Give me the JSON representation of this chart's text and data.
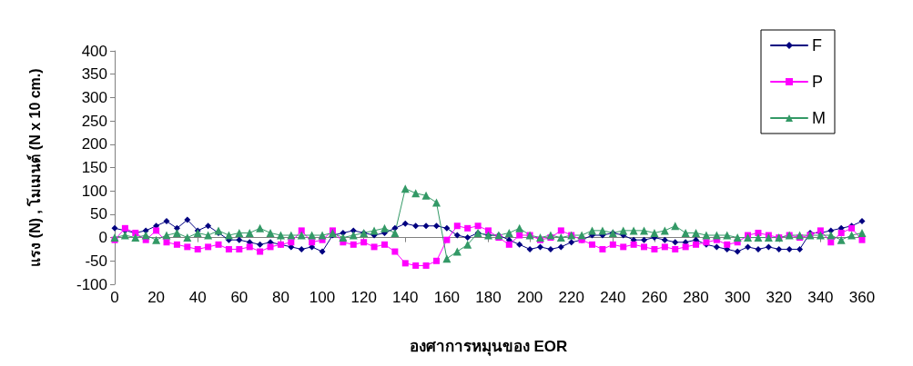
{
  "chart_data": {
    "type": "line",
    "xlabel": "องศาการหมุนของ EOR",
    "ylabel": "แรง (N) , โมเมนต์ (N x 10 cm.)",
    "x": [
      0,
      5,
      10,
      15,
      20,
      25,
      30,
      35,
      40,
      45,
      50,
      55,
      60,
      65,
      70,
      75,
      80,
      85,
      90,
      95,
      100,
      105,
      110,
      115,
      120,
      125,
      130,
      135,
      140,
      145,
      150,
      155,
      160,
      165,
      170,
      175,
      180,
      185,
      190,
      195,
      200,
      205,
      210,
      215,
      220,
      225,
      230,
      235,
      240,
      245,
      250,
      255,
      260,
      265,
      270,
      275,
      280,
      285,
      290,
      295,
      300,
      305,
      310,
      315,
      320,
      325,
      330,
      335,
      340,
      345,
      350,
      355,
      360
    ],
    "xlim": [
      0,
      360
    ],
    "xticks": [
      0,
      20,
      40,
      60,
      80,
      100,
      120,
      140,
      160,
      180,
      200,
      220,
      240,
      260,
      280,
      300,
      320,
      340,
      360
    ],
    "ylim": [
      -100,
      400
    ],
    "yticks": [
      -100,
      -50,
      0,
      50,
      100,
      150,
      200,
      250,
      300,
      350,
      400
    ],
    "legend": "top right",
    "line_style": "solid",
    "series": [
      {
        "name": "F",
        "color": "#000080",
        "marker": "diamond",
        "values": [
          20,
          15,
          10,
          15,
          25,
          35,
          20,
          38,
          15,
          25,
          10,
          -5,
          -5,
          -10,
          -15,
          -10,
          -15,
          -20,
          -25,
          -20,
          -30,
          5,
          10,
          15,
          10,
          5,
          10,
          20,
          30,
          25,
          25,
          25,
          20,
          5,
          0,
          10,
          5,
          5,
          -5,
          -15,
          -25,
          -20,
          -25,
          -20,
          -10,
          -5,
          5,
          5,
          10,
          5,
          -5,
          -5,
          0,
          -5,
          -10,
          -10,
          -5,
          -15,
          -20,
          -25,
          -30,
          -20,
          -25,
          -20,
          -25,
          -25,
          -25,
          10,
          10,
          15,
          20,
          25,
          35
        ]
      },
      {
        "name": "P",
        "color": "#ff00ff",
        "marker": "square",
        "values": [
          -5,
          20,
          10,
          -5,
          15,
          -10,
          -15,
          -20,
          -25,
          -20,
          -15,
          -25,
          -25,
          -20,
          -30,
          -20,
          -15,
          -10,
          15,
          -10,
          -5,
          15,
          -10,
          -15,
          -10,
          -20,
          -15,
          -30,
          -55,
          -60,
          -60,
          -50,
          -5,
          25,
          20,
          25,
          15,
          0,
          -15,
          5,
          5,
          -5,
          0,
          15,
          5,
          -5,
          -15,
          -25,
          -15,
          -20,
          -15,
          -20,
          -25,
          -20,
          -25,
          -20,
          -15,
          -10,
          -5,
          -15,
          -10,
          5,
          10,
          5,
          0,
          5,
          0,
          5,
          15,
          -10,
          10,
          20,
          -5
        ]
      },
      {
        "name": "M",
        "color": "#339966",
        "marker": "triangle",
        "values": [
          0,
          5,
          0,
          5,
          -5,
          5,
          10,
          0,
          10,
          5,
          15,
          5,
          10,
          10,
          20,
          10,
          5,
          5,
          5,
          5,
          5,
          10,
          0,
          5,
          10,
          15,
          20,
          10,
          105,
          95,
          90,
          75,
          -45,
          -30,
          -15,
          10,
          5,
          5,
          10,
          20,
          5,
          0,
          5,
          0,
          5,
          5,
          15,
          15,
          10,
          15,
          15,
          15,
          10,
          15,
          25,
          10,
          10,
          5,
          5,
          5,
          0,
          0,
          0,
          0,
          0,
          5,
          5,
          5,
          5,
          5,
          -5,
          5,
          10
        ]
      }
    ]
  }
}
